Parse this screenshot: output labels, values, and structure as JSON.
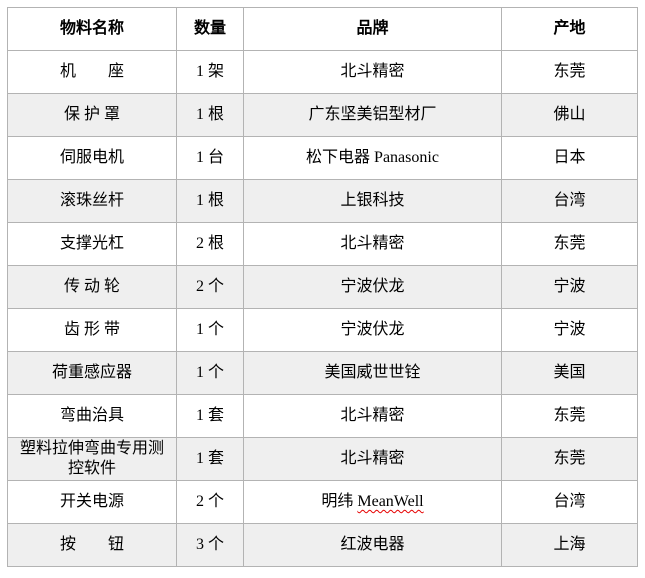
{
  "table": {
    "columns": [
      {
        "key": "material-name",
        "label": "物料名称"
      },
      {
        "key": "quantity",
        "label": "数量"
      },
      {
        "key": "brand",
        "label": "品牌"
      },
      {
        "key": "origin",
        "label": "产地"
      }
    ],
    "rows": [
      {
        "name": "机　　座",
        "qty": "1 架",
        "brand": "北斗精密",
        "origin": "东莞"
      },
      {
        "name": "保 护 罩",
        "qty": "1 根",
        "brand": "广东坚美铝型材厂",
        "origin": "佛山"
      },
      {
        "name": "伺服电机",
        "qty": "1 台",
        "brand": "松下电器 Panasonic",
        "origin": "日本"
      },
      {
        "name": "滚珠丝杆",
        "qty": "1 根",
        "brand": "上银科技",
        "origin": "台湾"
      },
      {
        "name": "支撑光杠",
        "qty": "2 根",
        "brand": "北斗精密",
        "origin": "东莞"
      },
      {
        "name": "传 动 轮",
        "qty": "2 个",
        "brand": "宁波伏龙",
        "origin": "宁波"
      },
      {
        "name": "齿 形 带",
        "qty": "1 个",
        "brand": "宁波伏龙",
        "origin": "宁波"
      },
      {
        "name": "荷重感应器",
        "qty": "1 个",
        "brand": "美国威世世铨",
        "origin": "美国"
      },
      {
        "name": "弯曲治具",
        "qty": "1 套",
        "brand": "北斗精密",
        "origin": "东莞"
      },
      {
        "name": "塑料拉伸弯曲专用测控软件",
        "qty": "1 套",
        "brand": "北斗精密",
        "origin": "东莞"
      },
      {
        "name": "开关电源",
        "qty": "2 个",
        "brand": "明纬 MeanWell",
        "brand_misspelled": "MeanWell",
        "origin": "台湾"
      },
      {
        "name": "按　　钮",
        "qty": "3 个",
        "brand": "红波电器",
        "origin": "上海"
      }
    ],
    "colors": {
      "stripe_background": "#efefef",
      "border": "#b3b3b3",
      "text": "#000000",
      "spellcheck_underline": "#e60000"
    }
  }
}
